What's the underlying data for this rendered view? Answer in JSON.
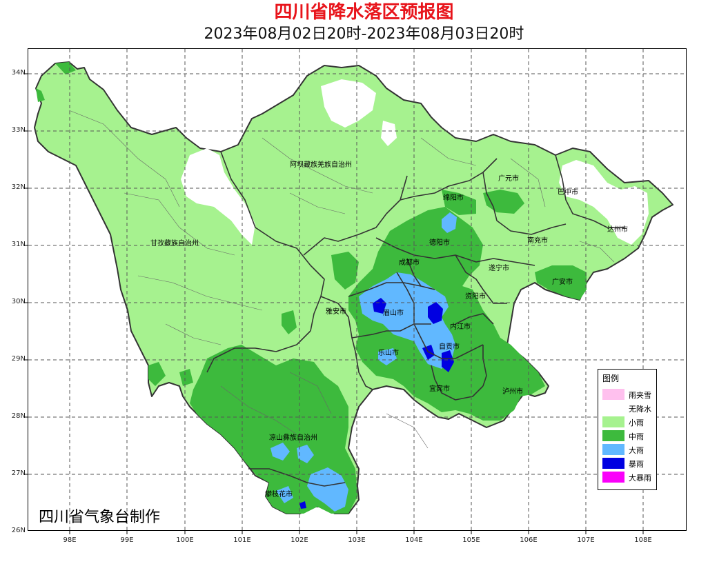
{
  "title": "四川省降水落区预报图",
  "subtitle": "2023年08月02日20时-2023年08月03日20时",
  "credit": "四川省气象台制作",
  "axes": {
    "latitude_ticks": [
      "34N",
      "33N",
      "32N",
      "31N",
      "30N",
      "29N",
      "28N",
      "27N",
      "26N"
    ],
    "longitude_ticks": [
      "98E",
      "99E",
      "100E",
      "101E",
      "102E",
      "103E",
      "104E",
      "105E",
      "106E",
      "107E",
      "108E"
    ]
  },
  "regions": [
    {
      "name": "阿坝藏族羌族自治州"
    },
    {
      "name": "甘孜藏族自治州"
    },
    {
      "name": "广元市"
    },
    {
      "name": "巴中市"
    },
    {
      "name": "绵阳市"
    },
    {
      "name": "达州市"
    },
    {
      "name": "德阳市"
    },
    {
      "name": "南充市"
    },
    {
      "name": "成都市"
    },
    {
      "name": "遂宁市"
    },
    {
      "name": "广安市"
    },
    {
      "name": "资阳市"
    },
    {
      "name": "雅安市"
    },
    {
      "name": "眉山市"
    },
    {
      "name": "内江市"
    },
    {
      "name": "自贡市"
    },
    {
      "name": "乐山市"
    },
    {
      "name": "宜宾市"
    },
    {
      "name": "泸州市"
    },
    {
      "name": "凉山彝族自治州"
    },
    {
      "name": "攀枝花市"
    }
  ],
  "legend": {
    "title": "图例",
    "items": [
      {
        "label": "雨夹雪",
        "color": "#ffc0ee"
      },
      {
        "label": "无降水",
        "color": "#ffffff"
      },
      {
        "label": "小雨",
        "color": "#a6f28f"
      },
      {
        "label": "中雨",
        "color": "#3dba3d"
      },
      {
        "label": "大雨",
        "color": "#61b8ff"
      },
      {
        "label": "暴雨",
        "color": "#0000e1"
      },
      {
        "label": "大暴雨",
        "color": "#fa00fa"
      }
    ]
  },
  "colors": {
    "light_rain": "#a6f28f",
    "moderate_rain": "#3dba3d",
    "heavy_rain": "#61b8ff",
    "rainstorm": "#0000e1",
    "no_rain": "#ffffff",
    "border": "#333333"
  }
}
